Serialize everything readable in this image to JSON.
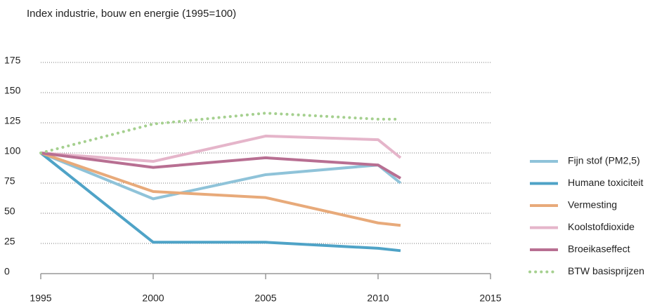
{
  "chart_data": {
    "type": "line",
    "title": "Index industrie, bouw en energie (1995=100)",
    "x": [
      1995,
      2000,
      2005,
      2010,
      2011
    ],
    "series": [
      {
        "name": "Fijn stof (PM2,5)",
        "color": "#8fc3d9",
        "values": [
          100,
          62,
          82,
          90,
          75
        ]
      },
      {
        "name": "Humane toxiciteit",
        "color": "#4fa3c7",
        "values": [
          100,
          26,
          26,
          21,
          19
        ]
      },
      {
        "name": "Vermesting",
        "color": "#e8aa7a",
        "values": [
          100,
          68,
          63,
          42,
          40
        ]
      },
      {
        "name": "Koolstofdioxide",
        "color": "#e5b5ca",
        "values": [
          100,
          93,
          114,
          111,
          96
        ]
      },
      {
        "name": "Broeikaseffect",
        "color": "#b86f92",
        "values": [
          100,
          88,
          96,
          90,
          79
        ]
      },
      {
        "name": "BTW basisprijzen",
        "color": "#a5d08f",
        "style": "dotted",
        "values": [
          100,
          124,
          133,
          128,
          128
        ]
      }
    ],
    "xlim": [
      1995,
      2015
    ],
    "xticks": [
      1995,
      2000,
      2005,
      2010,
      2015
    ],
    "ylim": [
      0,
      175
    ],
    "yticks": [
      0,
      25,
      50,
      75,
      100,
      125,
      150,
      175
    ],
    "grid": true,
    "legend": "right"
  }
}
